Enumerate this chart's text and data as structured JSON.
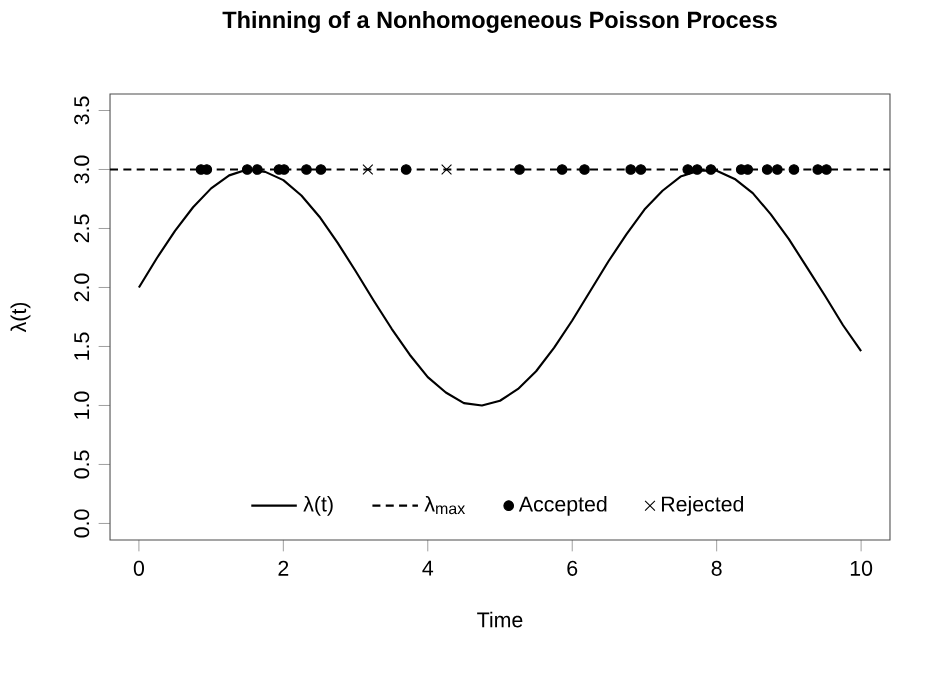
{
  "chart_data": {
    "type": "line",
    "title": "Thinning of a Nonhomogeneous Poisson Process",
    "xlabel": "Time",
    "ylabel": "λ(t)",
    "xlim": [
      -0.4,
      10.4
    ],
    "ylim": [
      -0.14,
      3.64
    ],
    "xticks": [
      0,
      2,
      4,
      6,
      8,
      10
    ],
    "yticks": [
      {
        "value": 0,
        "label": "0.0"
      },
      {
        "value": 0.5,
        "label": "0.5"
      },
      {
        "value": 1,
        "label": "1.0"
      },
      {
        "value": 1.5,
        "label": "1.5"
      },
      {
        "value": 2,
        "label": "2.0"
      },
      {
        "value": 2.5,
        "label": "2.5"
      },
      {
        "value": 3,
        "label": "3.0"
      },
      {
        "value": 3.5,
        "label": "3.5"
      }
    ],
    "legend": "bottom",
    "grid": false,
    "series": [
      {
        "name": "λ(t)",
        "line_style": "solid",
        "marker": "none",
        "color": "#000000",
        "x": [
          0,
          0.25,
          0.5,
          0.75,
          1,
          1.25,
          1.5,
          1.75,
          2,
          2.25,
          2.5,
          2.75,
          3,
          3.25,
          3.5,
          3.75,
          4,
          4.25,
          4.5,
          4.75,
          5,
          5.25,
          5.5,
          5.75,
          6,
          6.25,
          6.5,
          6.75,
          7,
          7.25,
          7.5,
          7.75,
          8,
          8.25,
          8.5,
          8.75,
          9,
          9.25,
          9.5,
          9.75,
          10
        ],
        "values": [
          2.0,
          2.25,
          2.48,
          2.68,
          2.84,
          2.95,
          3.0,
          2.98,
          2.91,
          2.78,
          2.6,
          2.38,
          2.14,
          1.89,
          1.65,
          1.43,
          1.24,
          1.11,
          1.02,
          1.0,
          1.04,
          1.14,
          1.29,
          1.49,
          1.72,
          1.97,
          2.22,
          2.45,
          2.66,
          2.82,
          2.94,
          2.99,
          2.99,
          2.92,
          2.8,
          2.62,
          2.41,
          2.17,
          1.93,
          1.68,
          1.46
        ]
      },
      {
        "name": "λ$_{max}$",
        "line_style": "dashed",
        "marker": "none",
        "color": "#000000",
        "x": [
          -0.4,
          10.4
        ],
        "values": [
          3.0,
          3.0
        ]
      },
      {
        "name": "Accepted",
        "type": "scatter",
        "marker": "circle",
        "color": "#000000",
        "x": [
          0.86,
          0.94,
          1.5,
          1.64,
          1.94,
          2.01,
          2.32,
          2.52,
          3.7,
          5.27,
          5.86,
          6.17,
          6.81,
          6.95,
          7.6,
          7.73,
          7.92,
          8.34,
          8.43,
          8.7,
          8.84,
          9.07,
          9.4,
          9.52
        ],
        "values": [
          3.0,
          3.0,
          3.0,
          3.0,
          3.0,
          3.0,
          3.0,
          3.0,
          3.0,
          3.0,
          3.0,
          3.0,
          3.0,
          3.0,
          3.0,
          3.0,
          3.0,
          3.0,
          3.0,
          3.0,
          3.0,
          3.0,
          3.0,
          3.0
        ]
      },
      {
        "name": "Rejected",
        "type": "scatter",
        "marker": "cross",
        "color": "#000000",
        "x": [
          3.17,
          4.26
        ],
        "values": [
          3.0,
          3.0
        ]
      }
    ]
  }
}
